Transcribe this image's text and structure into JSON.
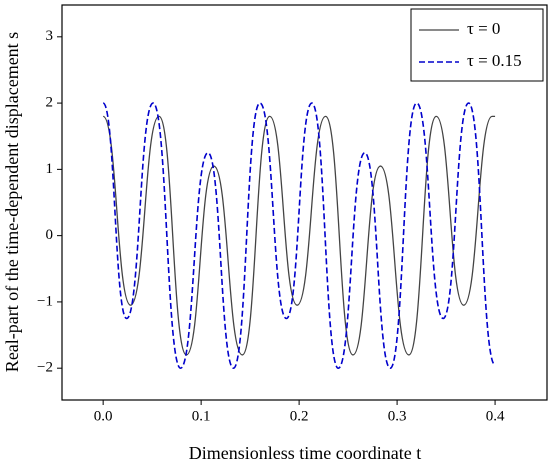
{
  "chart_data": {
    "type": "line",
    "xlabel": "Dimensionless time coordinate t",
    "ylabel": "Real-part of the time-dependent displacement s",
    "xlim": [
      -0.042,
      0.453
    ],
    "ylim": [
      -2.48,
      3.48
    ],
    "xticks": [
      {
        "value": 0,
        "label": "0.0"
      },
      {
        "value": 0.1,
        "label": "0.1"
      },
      {
        "value": 0.2,
        "label": "0.2"
      },
      {
        "value": 0.3,
        "label": "0.3"
      },
      {
        "value": 0.4,
        "label": "0.4"
      }
    ],
    "yticks": [
      {
        "value": -2,
        "label": "−2"
      },
      {
        "value": -1,
        "label": "−1"
      },
      0,
      1,
      2,
      3
    ],
    "legend": "upper right",
    "series": [
      {
        "name": "τ = 0",
        "color": "#444444",
        "dash": false,
        "x": [
          0,
          0.028,
          0.057,
          0.085,
          0.113,
          0.142,
          0.17,
          0.198,
          0.227,
          0.255,
          0.283,
          0.312,
          0.34,
          0.368,
          0.397,
          0.4
        ],
        "values": [
          1.8,
          -1.05,
          1.8,
          -1.8,
          1.05,
          -1.8,
          1.8,
          -1.05,
          1.8,
          -1.8,
          1.05,
          -1.8,
          1.8,
          -1.05,
          1.8,
          1.8
        ]
      },
      {
        "name": "τ = 0.15",
        "color": "#0000cc",
        "dash": true,
        "x": [
          0,
          0.024,
          0.051,
          0.079,
          0.107,
          0.133,
          0.16,
          0.187,
          0.213,
          0.24,
          0.267,
          0.293,
          0.32,
          0.347,
          0.373,
          0.4
        ],
        "values": [
          2.0,
          -1.25,
          2.0,
          -2.0,
          1.25,
          -2.0,
          2.0,
          -1.25,
          2.0,
          -2.0,
          1.25,
          -2.0,
          2.0,
          -1.25,
          2.0,
          -1.95
        ]
      }
    ]
  }
}
